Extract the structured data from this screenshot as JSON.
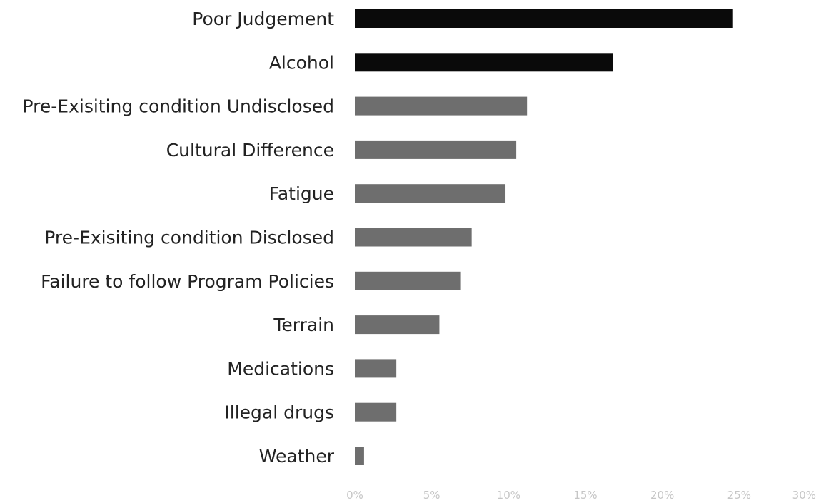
{
  "chart_data": {
    "type": "bar",
    "orientation": "horizontal",
    "title": "",
    "xlabel": "",
    "ylabel": "",
    "categories": [
      "Poor Judgement",
      "Alcohol",
      "Pre-Exisiting condition Undisclosed",
      "Cultural Difference",
      "Fatigue",
      "Pre-Exisiting condition Disclosed",
      "Failure to follow Program Policies",
      "Terrain",
      "Medications",
      "Illegal drugs",
      "Weather"
    ],
    "values": [
      24.6,
      16.8,
      11.2,
      10.5,
      9.8,
      7.6,
      6.9,
      5.5,
      2.7,
      2.7,
      0.6
    ],
    "bar_colors": [
      "#0a0a0a",
      "#0a0a0a",
      "#6e6e6e",
      "#6e6e6e",
      "#6e6e6e",
      "#6e6e6e",
      "#6e6e6e",
      "#6e6e6e",
      "#6e6e6e",
      "#6e6e6e",
      "#6e6e6e"
    ],
    "xlim": [
      0,
      30
    ],
    "ticks": [
      0,
      5,
      10,
      15,
      20,
      25,
      30
    ],
    "tick_labels": [
      "0%",
      "5%",
      "10%",
      "15%",
      "20%",
      "25%",
      "30%"
    ],
    "grid": false,
    "legend": "none"
  }
}
